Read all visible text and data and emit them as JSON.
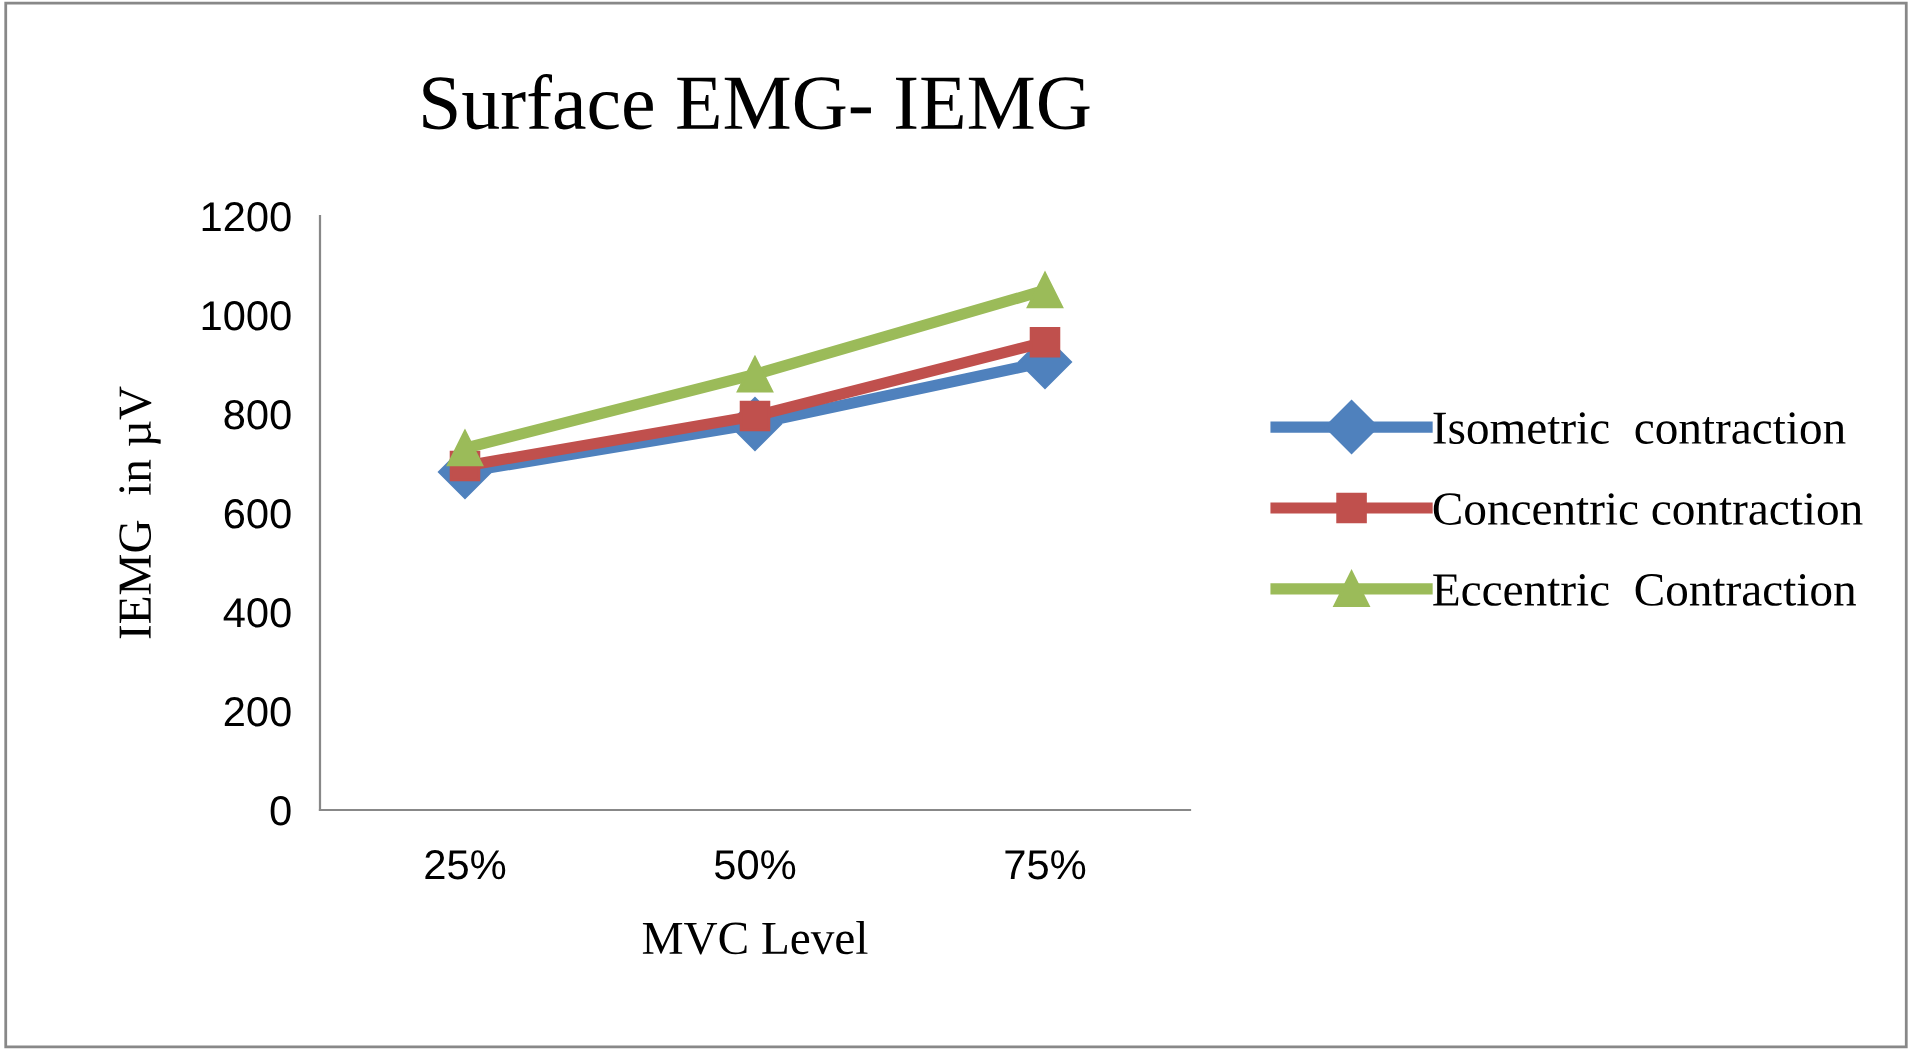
{
  "chart_data": {
    "type": "line",
    "title": "Surface EMG- IEMG",
    "xlabel": "MVC Level",
    "ylabel": "IEMG  in µV",
    "categories": [
      "25%",
      "50%",
      "75%"
    ],
    "series": [
      {
        "name": "Isometric  contraction",
        "color": "#4f81bd",
        "values": [
          683,
          780,
          905
        ],
        "marker": "diamond"
      },
      {
        "name": "Concentric contraction",
        "color": "#c0504d",
        "values": [
          695,
          796,
          945
        ],
        "marker": "square"
      },
      {
        "name": "Eccentric  Contraction",
        "color": "#9bbb59",
        "values": [
          731,
          880,
          1050
        ],
        "marker": "triangle"
      }
    ],
    "ylim": [
      0,
      1200
    ],
    "yticks": [
      0,
      200,
      400,
      600,
      800,
      1000,
      1200
    ],
    "grid": false,
    "legend": "right"
  }
}
